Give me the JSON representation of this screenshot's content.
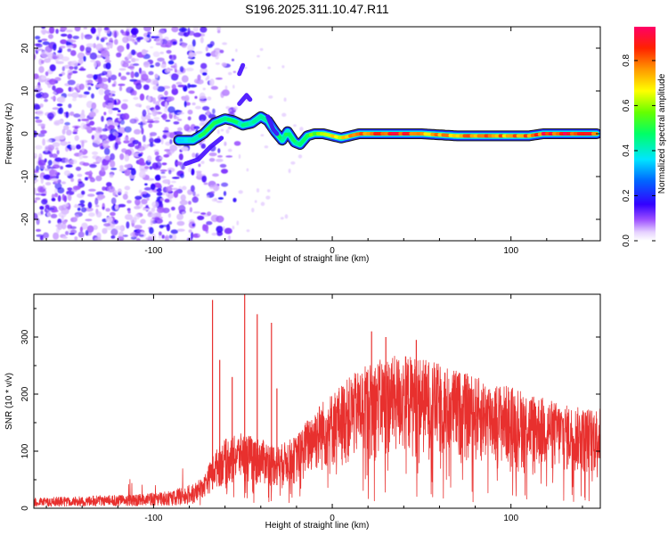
{
  "figure": {
    "title": "S196.2025.311.10.47.R11"
  },
  "chart_data": [
    {
      "type": "heatmap",
      "name": "spectrogram",
      "xlabel": "Height of straight line (km)",
      "ylabel": "Frequency (Hz)",
      "xlim": [
        -167,
        150
      ],
      "ylim": [
        -25,
        25
      ],
      "x_ticks": [
        -100,
        0,
        100
      ],
      "y_ticks": [
        -20,
        -10,
        0,
        10,
        20
      ],
      "colorbar": {
        "label": "Normalized spectral amplitude",
        "range": [
          0,
          0.95
        ],
        "ticks": [
          0.0,
          0.2,
          0.4,
          0.6,
          0.8
        ],
        "tick_labels": [
          "0.0",
          "0.2",
          "0.4",
          "0.6",
          "0.8"
        ]
      },
      "ridge": {
        "description_points": [
          [
            -85,
            -1.5
          ],
          [
            -78,
            -1.5
          ],
          [
            -72,
            0
          ],
          [
            -66,
            2.5
          ],
          [
            -60,
            3.5
          ],
          [
            -55,
            3
          ],
          [
            -50,
            2
          ],
          [
            -45,
            2.5
          ],
          [
            -40,
            4
          ],
          [
            -36,
            3
          ],
          [
            -32,
            0.5
          ],
          [
            -28,
            -1.5
          ],
          [
            -25,
            0.5
          ],
          [
            -21,
            -2
          ],
          [
            -18,
            -2.5
          ],
          [
            -14,
            -0.5
          ],
          [
            -10,
            0
          ],
          [
            -5,
            0
          ],
          [
            0,
            -0.5
          ],
          [
            5,
            -1
          ],
          [
            10,
            -0.5
          ],
          [
            15,
            0
          ],
          [
            30,
            0
          ],
          [
            50,
            0
          ],
          [
            70,
            -0.5
          ],
          [
            90,
            -0.5
          ],
          [
            110,
            -0.5
          ],
          [
            118,
            0
          ],
          [
            148,
            0
          ]
        ],
        "amplitude_points": [
          [
            -85,
            0.4
          ],
          [
            -70,
            0.55
          ],
          [
            -55,
            0.5
          ],
          [
            -40,
            0.45
          ],
          [
            -30,
            0.55
          ],
          [
            -20,
            0.5
          ],
          [
            -10,
            0.6
          ],
          [
            0,
            0.75
          ],
          [
            10,
            0.8
          ],
          [
            20,
            0.85
          ],
          [
            35,
            0.95
          ],
          [
            50,
            0.85
          ],
          [
            65,
            0.8
          ],
          [
            80,
            0.85
          ],
          [
            95,
            0.85
          ],
          [
            110,
            0.85
          ],
          [
            120,
            0.95
          ],
          [
            148,
            0.95
          ]
        ]
      }
    },
    {
      "type": "line",
      "name": "snr",
      "xlabel": "Height of straight line (km)",
      "ylabel": "SNR (10 * v/v)",
      "xlim": [
        -167,
        150
      ],
      "ylim": [
        0,
        375
      ],
      "x_ticks": [
        -100,
        0,
        100
      ],
      "y_ticks": [
        0,
        100,
        200,
        300
      ],
      "series": [
        {
          "name": "SNR",
          "color": "#e8302e",
          "envelope_points": [
            [
              -167,
              15
            ],
            [
              -140,
              18
            ],
            [
              -110,
              20
            ],
            [
              -90,
              25
            ],
            [
              -80,
              35
            ],
            [
              -72,
              50
            ],
            [
              -66,
              90
            ],
            [
              -60,
              110
            ],
            [
              -50,
              120
            ],
            [
              -40,
              110
            ],
            [
              -30,
              100
            ],
            [
              -20,
              115
            ],
            [
              -10,
              160
            ],
            [
              0,
              185
            ],
            [
              10,
              210
            ],
            [
              20,
              230
            ],
            [
              30,
              240
            ],
            [
              40,
              245
            ],
            [
              50,
              240
            ],
            [
              60,
              230
            ],
            [
              70,
              220
            ],
            [
              80,
              210
            ],
            [
              90,
              200
            ],
            [
              100,
              195
            ],
            [
              110,
              185
            ],
            [
              120,
              175
            ],
            [
              130,
              165
            ],
            [
              140,
              160
            ],
            [
              150,
              160
            ]
          ],
          "spikes": [
            [
              -67,
              365
            ],
            [
              -49,
              375
            ],
            [
              -42,
              340
            ],
            [
              -34,
              325
            ],
            [
              -31,
              210
            ],
            [
              -63,
              260
            ],
            [
              -56,
              230
            ],
            [
              22,
              310
            ],
            [
              30,
              300
            ],
            [
              47,
              295
            ]
          ]
        }
      ]
    }
  ]
}
